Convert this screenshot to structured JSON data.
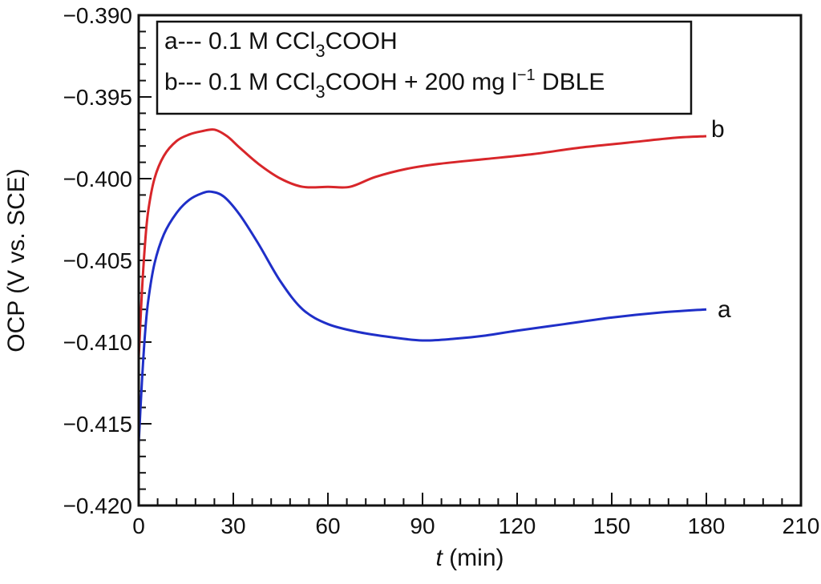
{
  "chart_data": {
    "type": "line",
    "xlabel_italic": "t",
    "xlabel": " (min)",
    "ylabel": "OCP (V vs. SCE)",
    "xlim": [
      0,
      210
    ],
    "ylim": [
      -0.42,
      -0.39
    ],
    "xticks": [
      0,
      30,
      60,
      90,
      120,
      150,
      180,
      210
    ],
    "yticks": [
      "−0.390",
      "−0.395",
      "−0.400",
      "−0.405",
      "−0.410",
      "−0.415",
      "−0.420"
    ],
    "grid": false,
    "legend_placement": "top-left",
    "legend": {
      "a": {
        "prefix": "a--- 0.1 M CCl",
        "sub": "3",
        "suffix": "COOH"
      },
      "b": {
        "prefix": "b--- 0.1 M CCl",
        "sub": "3",
        "suffix": "COOH +  200 mg l",
        "sup": "−1",
        "tail": " DBLE"
      }
    },
    "series": [
      {
        "name": "a",
        "color": "#1f2fc8",
        "x": [
          0,
          1,
          2,
          3,
          5,
          8,
          12,
          16,
          20,
          23,
          27,
          32,
          38,
          45,
          52,
          60,
          70,
          80,
          90,
          100,
          110,
          120,
          135,
          150,
          165,
          180
        ],
        "y": [
          -0.4162,
          -0.4125,
          -0.4095,
          -0.4075,
          -0.4052,
          -0.4034,
          -0.4021,
          -0.4013,
          -0.4009,
          -0.4008,
          -0.4011,
          -0.4022,
          -0.404,
          -0.4063,
          -0.408,
          -0.4089,
          -0.4094,
          -0.4097,
          -0.4099,
          -0.4098,
          -0.4096,
          -0.4093,
          -0.4089,
          -0.4085,
          -0.4082,
          -0.408
        ]
      },
      {
        "name": "b",
        "color": "#d8262a",
        "x": [
          0,
          1,
          2,
          3,
          5,
          8,
          12,
          16,
          20,
          24,
          28,
          32,
          38,
          45,
          52,
          60,
          67,
          75,
          85,
          95,
          110,
          125,
          140,
          155,
          170,
          180
        ],
        "y": [
          -0.411,
          -0.407,
          -0.404,
          -0.402,
          -0.4,
          -0.3986,
          -0.3977,
          -0.3973,
          -0.3971,
          -0.397,
          -0.3974,
          -0.3981,
          -0.3991,
          -0.4,
          -0.4005,
          -0.4005,
          -0.4005,
          -0.3999,
          -0.3994,
          -0.3991,
          -0.3988,
          -0.3985,
          -0.3981,
          -0.3978,
          -0.3975,
          -0.3974
        ]
      }
    ],
    "curve_labels": [
      "a",
      "b"
    ]
  }
}
